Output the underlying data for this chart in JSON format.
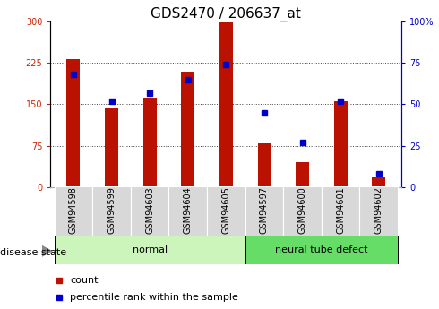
{
  "title": "GDS2470 / 206637_at",
  "samples": [
    "GSM94598",
    "GSM94599",
    "GSM94603",
    "GSM94604",
    "GSM94605",
    "GSM94597",
    "GSM94600",
    "GSM94601",
    "GSM94602"
  ],
  "counts": [
    232,
    143,
    162,
    210,
    298,
    80,
    45,
    155,
    18
  ],
  "percentiles": [
    68,
    52,
    57,
    65,
    74,
    45,
    27,
    52,
    8
  ],
  "disease_states": [
    "normal",
    "normal",
    "normal",
    "normal",
    "normal",
    "neural tube defect",
    "neural tube defect",
    "neural tube defect",
    "neural tube defect"
  ],
  "normal_color": "#ccf5bb",
  "defect_color": "#66dd66",
  "bar_color": "#bb1100",
  "dot_color": "#0000cc",
  "left_ylim": [
    0,
    300
  ],
  "right_ylim": [
    0,
    100
  ],
  "left_yticks": [
    0,
    75,
    150,
    225,
    300
  ],
  "right_yticks": [
    0,
    25,
    50,
    75,
    100
  ],
  "left_ycolor": "#cc2200",
  "right_ycolor": "#0000cc",
  "grid_color": "#444444",
  "bar_width": 0.35,
  "title_fontsize": 11,
  "tick_fontsize": 7,
  "legend_fontsize": 8,
  "label_fontsize": 8,
  "disease_label": "disease state",
  "normal_label": "normal",
  "defect_label": "neural tube defect",
  "count_legend": "count",
  "percentile_legend": "percentile rank within the sample",
  "xtick_bg": "#d8d8d8",
  "spine_color": "#aaaaaa"
}
